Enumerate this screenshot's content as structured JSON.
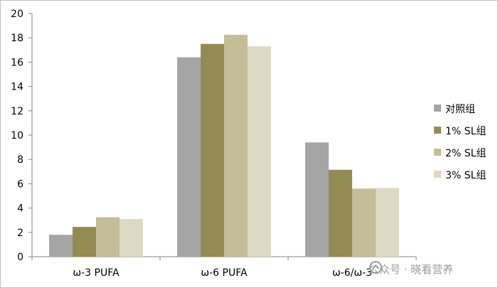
{
  "chart_data": {
    "type": "bar",
    "categories": [
      "ω-3 PUFA",
      "ω-6 PUFA",
      "ω-6/ω-3"
    ],
    "series": [
      {
        "name": "对照组",
        "values": [
          1.8,
          16.4,
          9.4
        ],
        "color": "#a5a5a5"
      },
      {
        "name": "1% SL组",
        "values": [
          2.45,
          17.5,
          7.15
        ],
        "color": "#948a54"
      },
      {
        "name": "2% SL组",
        "values": [
          3.25,
          18.25,
          5.6
        ],
        "color": "#c4bd97"
      },
      {
        "name": "3% SL组",
        "values": [
          3.1,
          17.3,
          5.65
        ],
        "color": "#ddd9c3"
      }
    ],
    "ylim": [
      0,
      20
    ],
    "yticks": [
      0,
      2,
      4,
      6,
      8,
      10,
      12,
      14,
      16,
      18,
      20
    ],
    "grid": false,
    "legend_position": "right",
    "title": "",
    "xlabel": "",
    "ylabel": ""
  },
  "watermark": {
    "icon": "wechat-official-account-icon",
    "text": "公众号 · 晓看营养"
  }
}
